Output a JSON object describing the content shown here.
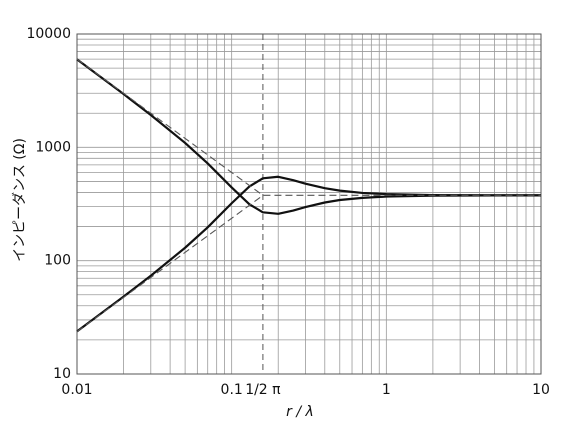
{
  "chart_data": {
    "type": "line",
    "xlabel": "r / λ",
    "ylabel": "インピーダンス (Ω)",
    "xlog": true,
    "ylog": true,
    "grid": true,
    "xlim": [
      0.01,
      10
    ],
    "ylim": [
      10,
      10000
    ],
    "xticks": [
      0.01,
      0.1,
      {
        "value": 0.1592,
        "label": "1/2 π"
      },
      1,
      10
    ],
    "yticks": [
      10,
      100,
      1000,
      10000
    ],
    "xminor": [
      0.02,
      0.03,
      0.04,
      0.05,
      0.06,
      0.07,
      0.08,
      0.09,
      0.2,
      0.3,
      0.4,
      0.5,
      0.6,
      0.7,
      0.8,
      0.9,
      2,
      3,
      4,
      5,
      6,
      7,
      8,
      9
    ],
    "yminor": [
      20,
      30,
      40,
      50,
      60,
      70,
      80,
      90,
      200,
      300,
      400,
      500,
      600,
      700,
      800,
      900,
      2000,
      3000,
      4000,
      5000,
      6000,
      7000,
      8000,
      9000
    ],
    "x": [
      0.01,
      0.02,
      0.03,
      0.05,
      0.07,
      0.1,
      0.13,
      0.159,
      0.2,
      0.25,
      0.3,
      0.4,
      0.5,
      0.7,
      1,
      2,
      5,
      10
    ],
    "series": [
      {
        "color": "#111111",
        "values": [
          5973,
          2952,
          1930,
          1093,
          721,
          443,
          315,
          267,
          259,
          277,
          297,
          326,
          343,
          358,
          368,
          375,
          377,
          377
        ]
      },
      {
        "color": "#111111",
        "values": [
          23.8,
          48.2,
          73.6,
          130,
          197,
          321,
          451,
          533,
          550,
          513,
          478,
          436,
          415,
          396,
          387,
          379,
          377,
          377
        ]
      },
      {
        "color": "#555555",
        "dash": true,
        "x": [
          0.01,
          0.1592,
          10
        ],
        "values": [
          6000,
          377,
          377
        ]
      },
      {
        "color": "#555555",
        "dash": true,
        "x": [
          0.01,
          0.1592
        ],
        "values": [
          23.7,
          377
        ]
      }
    ]
  }
}
